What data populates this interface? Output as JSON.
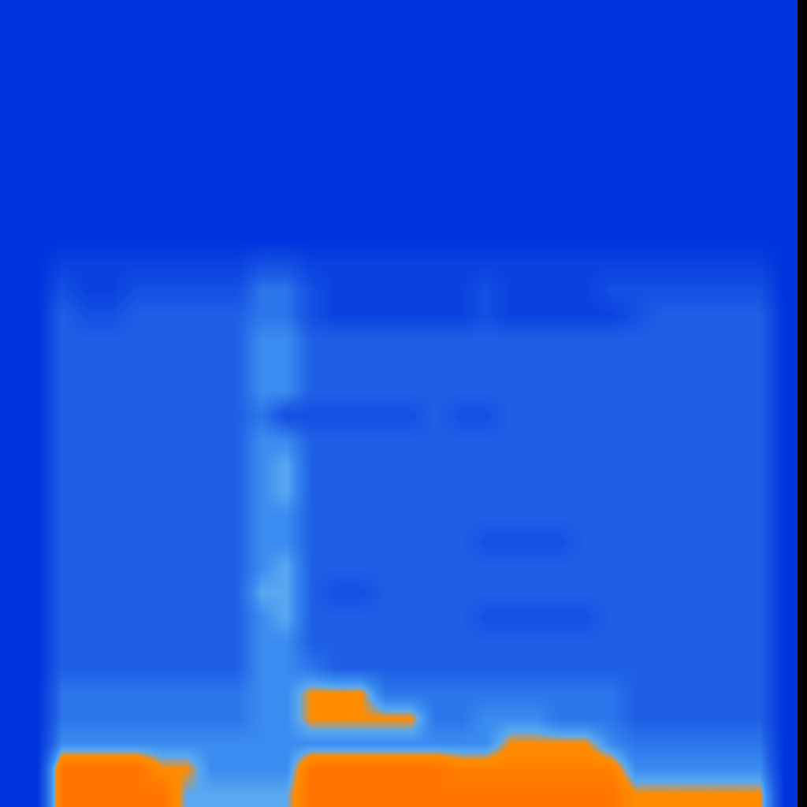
{
  "chart_data": {
    "type": "heatmap",
    "tick_labels": false,
    "value_range": [
      0,
      10
    ],
    "cells": [
      [
        0,
        0,
        0,
        0,
        0,
        0,
        0,
        0,
        0,
        0,
        0,
        0,
        0,
        0,
        0,
        0,
        0,
        0,
        0,
        0,
        0,
        0,
        0,
        0,
        0,
        0,
        0,
        0,
        0,
        0,
        0,
        0
      ],
      [
        0,
        0,
        0,
        0,
        0,
        0,
        0,
        0,
        0,
        0,
        0,
        0,
        0,
        0,
        0,
        0,
        0,
        0,
        0,
        0,
        0,
        0,
        0,
        0,
        0,
        0,
        0,
        0,
        0,
        0,
        0,
        0
      ],
      [
        0,
        0,
        0,
        0,
        0,
        0,
        0,
        0,
        0,
        0,
        0,
        0,
        0,
        0,
        0,
        0,
        0,
        0,
        0,
        0,
        0,
        0,
        0,
        0,
        0,
        0,
        0,
        0,
        0,
        0,
        0,
        0
      ],
      [
        0,
        0,
        0,
        0,
        0,
        0,
        0,
        0,
        0,
        0,
        0,
        0,
        0,
        0,
        0,
        0,
        0,
        0,
        0,
        0,
        0,
        0,
        0,
        0,
        0,
        0,
        0,
        0,
        0,
        0,
        0,
        0
      ],
      [
        0,
        0,
        0,
        0,
        0,
        0,
        0,
        0,
        0,
        0,
        0,
        0,
        0,
        0,
        0,
        0,
        0,
        0,
        0,
        0,
        0,
        0,
        0,
        0,
        0,
        0,
        0,
        0,
        0,
        0,
        0,
        0
      ],
      [
        0,
        0,
        0,
        0,
        0,
        0,
        0,
        0,
        0,
        0,
        0,
        0,
        0,
        0,
        0,
        0,
        0,
        0,
        0,
        0,
        0,
        0,
        0,
        0,
        0,
        0,
        0,
        0,
        0,
        0,
        0,
        0
      ],
      [
        0,
        0,
        0,
        0,
        0,
        0,
        0,
        0,
        0,
        0,
        0,
        0,
        0,
        0,
        0,
        0,
        0,
        0,
        0,
        0,
        0,
        0,
        0,
        0,
        0,
        0,
        0,
        0,
        0,
        0,
        0,
        0
      ],
      [
        0,
        0,
        0,
        0,
        0,
        0,
        0,
        0,
        0,
        0,
        0,
        0,
        0,
        0,
        0,
        0,
        0,
        0,
        0,
        0,
        0,
        0,
        0,
        0,
        0,
        0,
        0,
        0,
        0,
        0,
        0,
        0
      ],
      [
        0,
        0,
        0,
        0,
        0,
        0,
        0,
        0,
        0,
        0,
        0,
        0,
        0,
        0,
        0,
        0,
        0,
        0,
        0,
        0,
        0,
        0,
        0,
        0,
        0,
        0,
        0,
        0,
        0,
        0,
        0,
        0
      ],
      [
        0,
        0,
        0,
        0,
        0,
        0,
        0,
        0,
        0,
        0,
        0,
        0,
        0,
        0,
        0,
        0,
        0,
        0,
        0,
        0,
        0,
        0,
        0,
        0,
        0,
        0,
        0,
        0,
        0,
        0,
        0,
        0
      ],
      [
        0,
        0,
        1,
        1,
        1,
        1,
        1,
        1,
        1,
        1,
        2,
        2,
        1,
        1,
        1,
        1,
        1,
        1,
        1,
        1,
        1,
        1,
        1,
        1,
        1,
        1,
        1,
        1,
        1,
        1,
        1,
        0
      ],
      [
        0,
        0,
        2,
        1,
        1,
        2,
        2,
        2,
        2,
        2,
        4,
        4,
        2,
        1,
        1,
        1,
        1,
        1,
        1,
        2,
        1,
        1,
        1,
        1,
        2,
        2,
        2,
        2,
        2,
        2,
        2,
        0
      ],
      [
        0,
        0,
        3,
        2,
        2,
        3,
        3,
        3,
        3,
        3,
        4,
        4,
        2,
        1,
        1,
        1,
        1,
        1,
        1,
        2,
        1,
        1,
        1,
        1,
        1,
        2,
        3,
        3,
        3,
        3,
        3,
        0
      ],
      [
        0,
        0,
        3,
        3,
        3,
        3,
        3,
        3,
        3,
        3,
        5,
        5,
        3,
        3,
        3,
        3,
        3,
        3,
        3,
        3,
        3,
        3,
        3,
        3,
        3,
        3,
        3,
        3,
        3,
        3,
        3,
        0
      ],
      [
        0,
        0,
        3,
        3,
        3,
        3,
        3,
        3,
        3,
        3,
        5,
        5,
        3,
        3,
        3,
        3,
        3,
        3,
        3,
        3,
        3,
        3,
        3,
        3,
        3,
        3,
        3,
        3,
        3,
        3,
        3,
        0
      ],
      [
        0,
        0,
        3,
        3,
        3,
        3,
        3,
        3,
        3,
        3,
        5,
        5,
        3,
        3,
        3,
        3,
        3,
        3,
        3,
        3,
        3,
        3,
        3,
        3,
        3,
        3,
        3,
        3,
        3,
        3,
        3,
        0
      ],
      [
        0,
        0,
        3,
        3,
        3,
        3,
        3,
        3,
        3,
        3,
        4,
        2,
        2,
        2,
        2,
        2,
        2,
        3,
        2,
        2,
        3,
        3,
        3,
        3,
        3,
        3,
        3,
        3,
        3,
        3,
        3,
        0
      ],
      [
        0,
        0,
        3,
        3,
        3,
        3,
        3,
        3,
        3,
        3,
        5,
        5,
        3,
        3,
        3,
        3,
        3,
        3,
        3,
        3,
        3,
        3,
        3,
        3,
        3,
        3,
        3,
        3,
        3,
        3,
        3,
        0
      ],
      [
        0,
        0,
        3,
        3,
        3,
        3,
        3,
        3,
        3,
        3,
        5,
        6,
        3,
        3,
        3,
        3,
        3,
        3,
        3,
        3,
        3,
        3,
        3,
        3,
        3,
        3,
        3,
        3,
        3,
        3,
        3,
        0
      ],
      [
        0,
        0,
        3,
        3,
        3,
        3,
        3,
        3,
        3,
        3,
        5,
        6,
        3,
        3,
        3,
        3,
        3,
        3,
        3,
        3,
        3,
        3,
        3,
        3,
        3,
        3,
        3,
        3,
        3,
        3,
        3,
        0
      ],
      [
        0,
        0,
        3,
        3,
        3,
        3,
        3,
        3,
        3,
        3,
        5,
        5,
        3,
        3,
        3,
        3,
        3,
        3,
        3,
        3,
        3,
        3,
        3,
        3,
        3,
        3,
        3,
        3,
        3,
        3,
        3,
        0
      ],
      [
        0,
        0,
        3,
        3,
        3,
        3,
        3,
        3,
        3,
        3,
        5,
        5,
        3,
        3,
        3,
        3,
        3,
        3,
        3,
        2,
        2,
        2,
        2,
        3,
        3,
        3,
        3,
        3,
        3,
        3,
        3,
        0
      ],
      [
        0,
        0,
        3,
        3,
        3,
        3,
        3,
        3,
        3,
        3,
        5,
        6,
        3,
        3,
        3,
        3,
        3,
        3,
        3,
        3,
        3,
        3,
        3,
        3,
        3,
        3,
        3,
        3,
        3,
        3,
        3,
        0
      ],
      [
        0,
        0,
        3,
        3,
        3,
        3,
        3,
        3,
        3,
        3,
        6,
        6,
        3,
        2,
        2,
        3,
        3,
        3,
        3,
        3,
        3,
        3,
        3,
        3,
        3,
        3,
        3,
        3,
        3,
        3,
        3,
        0
      ],
      [
        0,
        0,
        3,
        3,
        3,
        3,
        3,
        3,
        3,
        3,
        5,
        6,
        3,
        3,
        3,
        3,
        3,
        3,
        3,
        2,
        2,
        2,
        2,
        2,
        3,
        3,
        3,
        3,
        3,
        3,
        3,
        0
      ],
      [
        0,
        0,
        3,
        3,
        3,
        3,
        3,
        3,
        3,
        3,
        5,
        5,
        3,
        3,
        3,
        3,
        3,
        3,
        3,
        3,
        3,
        3,
        3,
        3,
        3,
        3,
        3,
        3,
        3,
        3,
        3,
        0
      ],
      [
        0,
        0,
        3,
        3,
        3,
        3,
        3,
        3,
        3,
        3,
        5,
        5,
        4,
        3,
        3,
        3,
        3,
        3,
        3,
        3,
        3,
        3,
        3,
        3,
        3,
        3,
        3,
        3,
        3,
        3,
        3,
        0
      ],
      [
        0,
        0,
        4,
        4,
        4,
        4,
        4,
        4,
        4,
        4,
        5,
        5,
        7,
        7,
        7,
        4,
        4,
        4,
        4,
        4,
        4,
        4,
        4,
        4,
        4,
        3,
        3,
        3,
        3,
        3,
        3,
        0
      ],
      [
        0,
        0,
        4,
        4,
        4,
        4,
        4,
        4,
        4,
        4,
        5,
        5,
        7,
        7,
        7,
        7,
        7,
        4,
        4,
        5,
        5,
        5,
        4,
        4,
        4,
        3,
        3,
        3,
        3,
        3,
        3,
        0
      ],
      [
        0,
        0,
        5,
        5,
        5,
        5,
        5,
        5,
        5,
        5,
        5,
        5,
        5,
        5,
        5,
        5,
        5,
        5,
        5,
        5,
        7,
        7,
        7,
        7,
        5,
        4,
        4,
        4,
        4,
        4,
        4,
        0
      ],
      [
        0,
        0,
        9,
        9,
        9,
        9,
        7,
        7,
        5,
        5,
        5,
        5,
        9,
        9,
        9,
        9,
        9,
        9,
        8,
        8,
        8,
        8,
        8,
        8,
        8,
        5,
        5,
        5,
        5,
        5,
        5,
        0
      ],
      [
        0,
        0,
        9,
        9,
        9,
        9,
        9,
        6,
        6,
        6,
        6,
        6,
        9,
        9,
        9,
        9,
        9,
        9,
        9,
        9,
        9,
        9,
        9,
        9,
        9,
        7,
        7,
        7,
        7,
        7,
        7,
        0
      ]
    ]
  }
}
